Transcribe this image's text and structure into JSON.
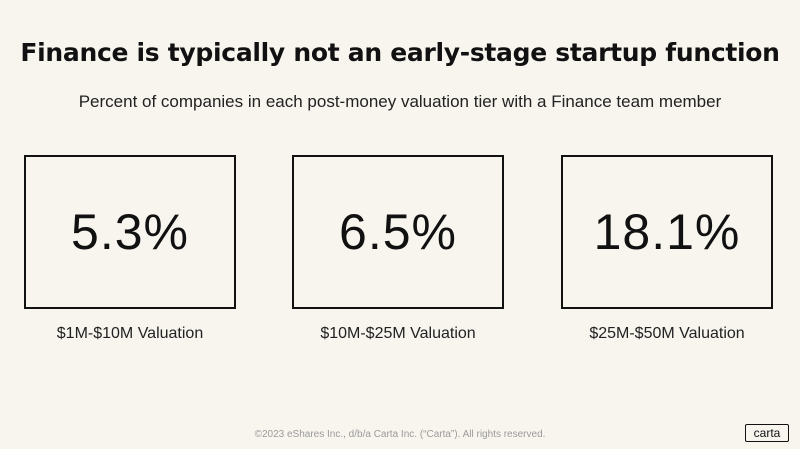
{
  "slide": {
    "title": "Finance is typically not an early-stage startup function",
    "subtitle": "Percent of companies in each post-money valuation tier with a Finance team member",
    "footer": "©2023 eShares Inc., d/b/a Carta Inc. (“Carta”). All rights reserved.",
    "logo": "carta"
  },
  "chart_data": {
    "type": "table",
    "title": "Finance is typically not an early-stage startup function",
    "subtitle": "Percent of companies in each post-money valuation tier with a Finance team member",
    "categories": [
      "$1M-$10M Valuation",
      "$10M-$25M Valuation",
      "$25M-$50M Valuation"
    ],
    "values": [
      5.3,
      6.5,
      18.1
    ],
    "value_labels": [
      "5.3%",
      "6.5%",
      "18.1%"
    ],
    "unit": "%"
  }
}
